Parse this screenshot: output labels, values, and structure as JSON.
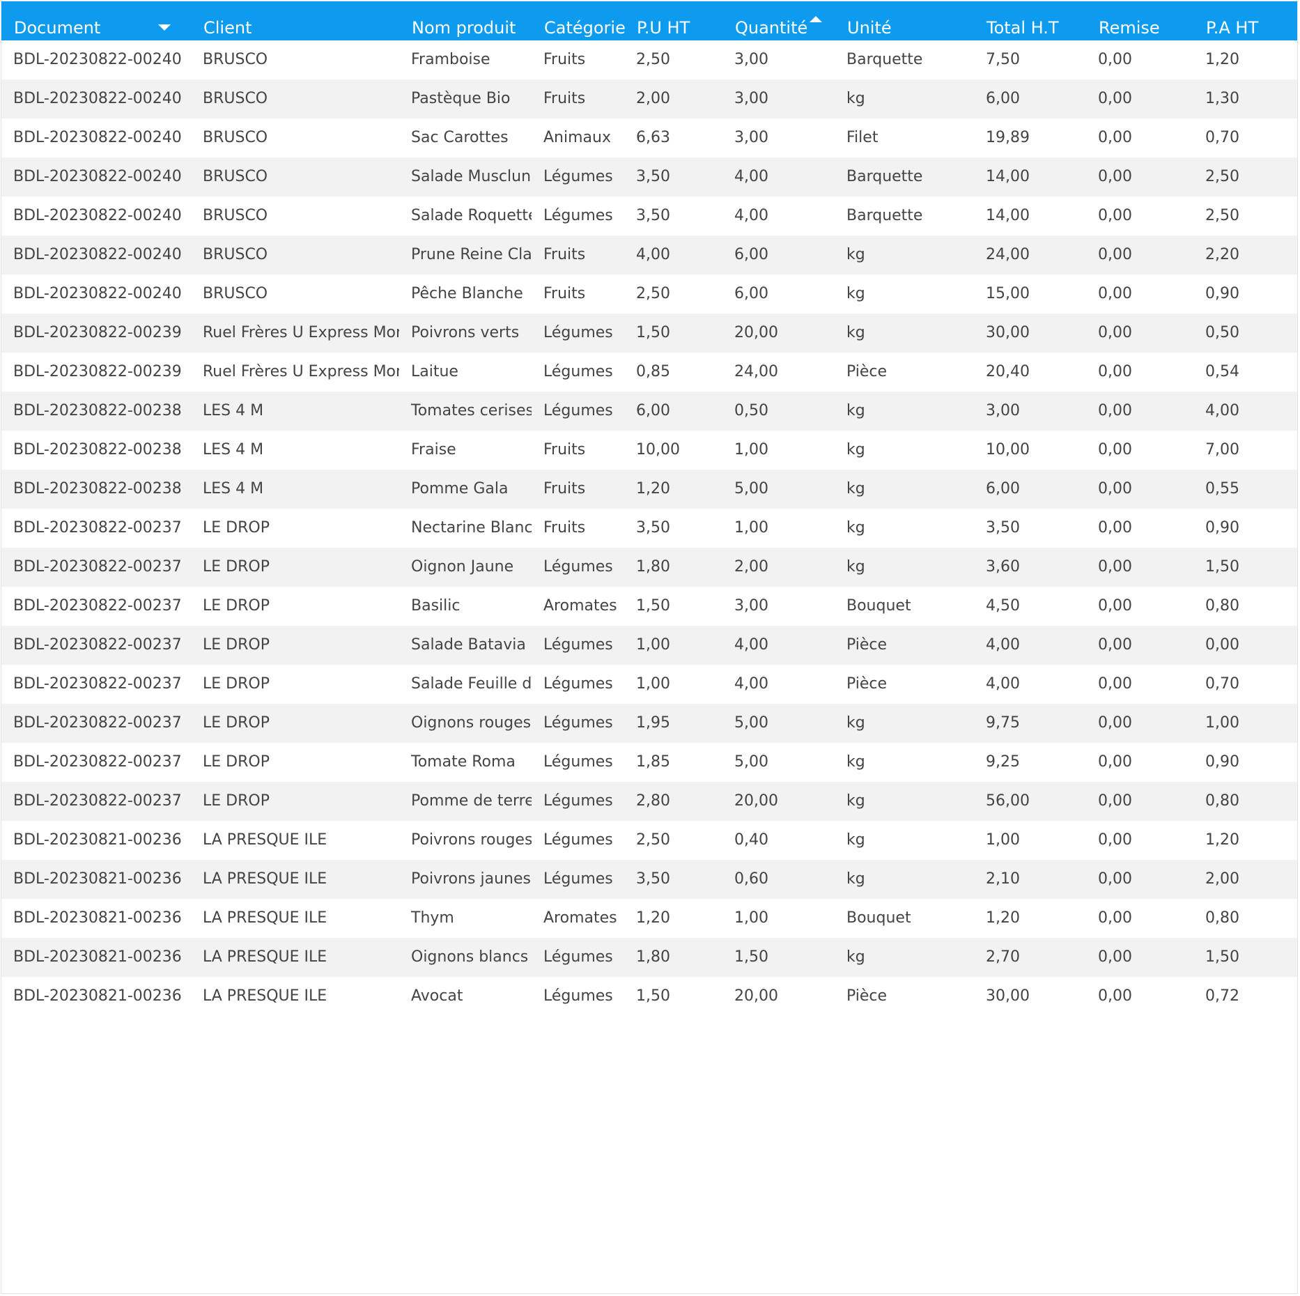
{
  "colors": {
    "header_bg": "#0d9bf0",
    "header_text": "#ffffff",
    "row_alt_bg": "#f2f2f2",
    "text": "#444444"
  },
  "columns": [
    {
      "key": "document",
      "label": "Document",
      "sort": "desc"
    },
    {
      "key": "client",
      "label": "Client",
      "sort": null
    },
    {
      "key": "produit",
      "label": "Nom produit",
      "sort": null
    },
    {
      "key": "categorie",
      "label": "Catégorie",
      "sort": null
    },
    {
      "key": "pu_ht",
      "label": "P.U HT",
      "sort": null
    },
    {
      "key": "quantite",
      "label": "Quantité",
      "sort": "asc"
    },
    {
      "key": "unite",
      "label": "Unité",
      "sort": null
    },
    {
      "key": "total_ht",
      "label": "Total H.T",
      "sort": null
    },
    {
      "key": "remise",
      "label": "Remise",
      "sort": null
    },
    {
      "key": "pa_ht",
      "label": "P.A HT",
      "sort": null
    }
  ],
  "rows": [
    [
      "BDL-20230822-00240",
      "BRUSCO",
      "Framboise",
      "Fruits",
      "2,50",
      "3,00",
      "Barquette",
      "7,50",
      "0,00",
      "1,20"
    ],
    [
      "BDL-20230822-00240",
      "BRUSCO",
      "Pastèque Bio",
      "Fruits",
      "2,00",
      "3,00",
      "kg",
      "6,00",
      "0,00",
      "1,30"
    ],
    [
      "BDL-20230822-00240",
      "BRUSCO",
      "Sac Carottes",
      "Animaux",
      "6,63",
      "3,00",
      "Filet",
      "19,89",
      "0,00",
      "0,70"
    ],
    [
      "BDL-20230822-00240",
      "BRUSCO",
      "Salade Musclun",
      "Légumes",
      "3,50",
      "4,00",
      "Barquette",
      "14,00",
      "0,00",
      "2,50"
    ],
    [
      "BDL-20230822-00240",
      "BRUSCO",
      "Salade Roquette",
      "Légumes",
      "3,50",
      "4,00",
      "Barquette",
      "14,00",
      "0,00",
      "2,50"
    ],
    [
      "BDL-20230822-00240",
      "BRUSCO",
      "Prune Reine Claude",
      "Fruits",
      "4,00",
      "6,00",
      "kg",
      "24,00",
      "0,00",
      "2,20"
    ],
    [
      "BDL-20230822-00240",
      "BRUSCO",
      "Pêche Blanche",
      "Fruits",
      "2,50",
      "6,00",
      "kg",
      "15,00",
      "0,00",
      "0,90"
    ],
    [
      "BDL-20230822-00239",
      "Ruel Frères U Express Montpellier",
      "Poivrons verts",
      "Légumes",
      "1,50",
      "20,00",
      "kg",
      "30,00",
      "0,00",
      "0,50"
    ],
    [
      "BDL-20230822-00239",
      "Ruel Frères U Express Montpellier",
      "Laitue",
      "Légumes",
      "0,85",
      "24,00",
      "Pièce",
      "20,40",
      "0,00",
      "0,54"
    ],
    [
      "BDL-20230822-00238",
      "LES 4 M",
      "Tomates cerises",
      "Légumes",
      "6,00",
      "0,50",
      "kg",
      "3,00",
      "0,00",
      "4,00"
    ],
    [
      "BDL-20230822-00238",
      "LES 4 M",
      "Fraise",
      "Fruits",
      "10,00",
      "1,00",
      "kg",
      "10,00",
      "0,00",
      "7,00"
    ],
    [
      "BDL-20230822-00238",
      "LES 4 M",
      "Pomme Gala",
      "Fruits",
      "1,20",
      "5,00",
      "kg",
      "6,00",
      "0,00",
      "0,55"
    ],
    [
      "BDL-20230822-00237",
      "LE DROP",
      "Nectarine Blanche",
      "Fruits",
      "3,50",
      "1,00",
      "kg",
      "3,50",
      "0,00",
      "0,90"
    ],
    [
      "BDL-20230822-00237",
      "LE DROP",
      "Oignon Jaune",
      "Légumes",
      "1,80",
      "2,00",
      "kg",
      "3,60",
      "0,00",
      "1,50"
    ],
    [
      "BDL-20230822-00237",
      "LE DROP",
      "Basilic",
      "Aromates",
      "1,50",
      "3,00",
      "Bouquet",
      "4,50",
      "0,00",
      "0,80"
    ],
    [
      "BDL-20230822-00237",
      "LE DROP",
      "Salade Batavia",
      "Légumes",
      "1,00",
      "4,00",
      "Pièce",
      "4,00",
      "0,00",
      "0,00"
    ],
    [
      "BDL-20230822-00237",
      "LE DROP",
      "Salade Feuille de chêne",
      "Légumes",
      "1,00",
      "4,00",
      "Pièce",
      "4,00",
      "0,00",
      "0,70"
    ],
    [
      "BDL-20230822-00237",
      "LE DROP",
      "Oignons rouges",
      "Légumes",
      "1,95",
      "5,00",
      "kg",
      "9,75",
      "0,00",
      "1,00"
    ],
    [
      "BDL-20230822-00237",
      "LE DROP",
      "Tomate Roma",
      "Légumes",
      "1,85",
      "5,00",
      "kg",
      "9,25",
      "0,00",
      "0,90"
    ],
    [
      "BDL-20230822-00237",
      "LE DROP",
      "Pomme de terre",
      "Légumes",
      "2,80",
      "20,00",
      "kg",
      "56,00",
      "0,00",
      "0,80"
    ],
    [
      "BDL-20230821-00236",
      "LA PRESQUE ILE",
      "Poivrons rouges",
      "Légumes",
      "2,50",
      "0,40",
      "kg",
      "1,00",
      "0,00",
      "1,20"
    ],
    [
      "BDL-20230821-00236",
      "LA PRESQUE ILE",
      "Poivrons jaunes",
      "Légumes",
      "3,50",
      "0,60",
      "kg",
      "2,10",
      "0,00",
      "2,00"
    ],
    [
      "BDL-20230821-00236",
      "LA PRESQUE ILE",
      "Thym",
      "Aromates",
      "1,20",
      "1,00",
      "Bouquet",
      "1,20",
      "0,00",
      "0,80"
    ],
    [
      "BDL-20230821-00236",
      "LA PRESQUE ILE",
      "Oignons blancs",
      "Légumes",
      "1,80",
      "1,50",
      "kg",
      "2,70",
      "0,00",
      "1,50"
    ],
    [
      "BDL-20230821-00236",
      "LA PRESQUE ILE",
      "Avocat",
      "Légumes",
      "1,50",
      "20,00",
      "Pièce",
      "30,00",
      "0,00",
      "0,72"
    ]
  ]
}
